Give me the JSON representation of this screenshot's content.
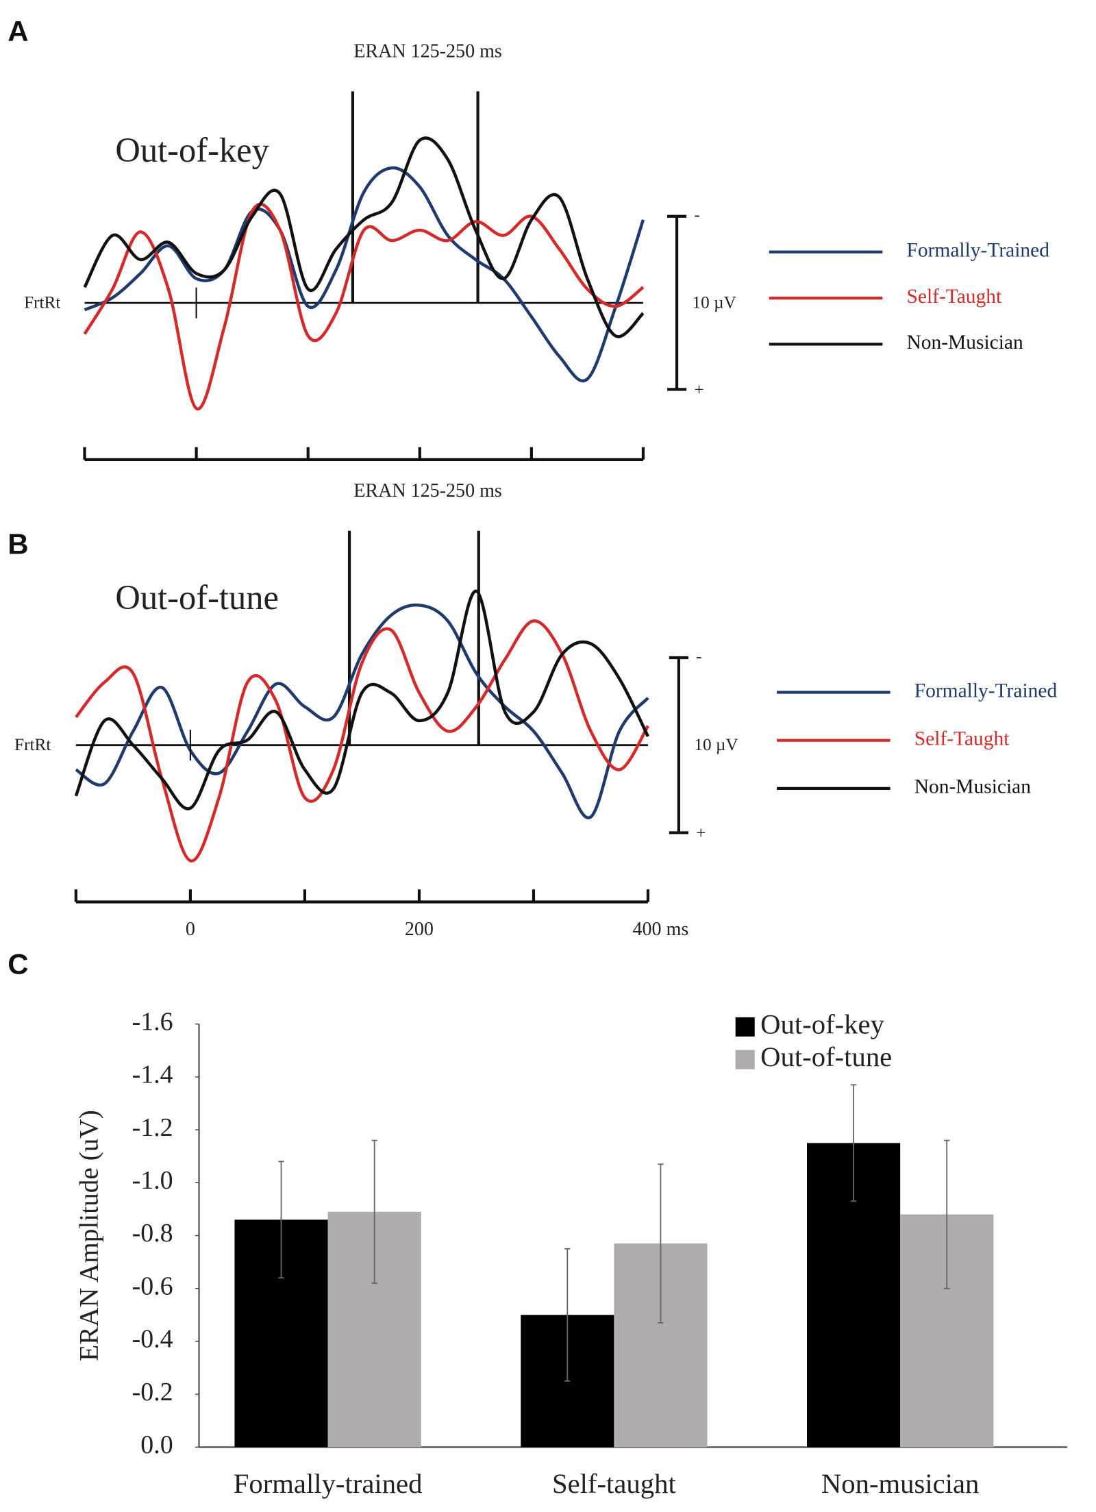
{
  "chart_data": [
    {
      "type": "line",
      "panel_label": "A",
      "title": "ERAN 125-250 ms",
      "condition": "Out-of-key",
      "channel": "FrtRt",
      "window_ms": [
        140,
        252
      ],
      "xlim": [
        -100,
        400
      ],
      "minor_xticks": [
        -100,
        0,
        100,
        200,
        300,
        400
      ],
      "scale_bar": {
        "value": 10,
        "label": "10 µV"
      },
      "scale_bar_ends": [
        "-",
        "+"
      ],
      "x": [
        -100,
        -75,
        -50,
        -25,
        0,
        25,
        50,
        75,
        100,
        125,
        150,
        175,
        200,
        225,
        250,
        275,
        300,
        325,
        350,
        375,
        400
      ],
      "series": [
        {
          "name": "Formally-Trained",
          "color": "#1f3a6e",
          "values": [
            0.4,
            -0.3,
            -1.7,
            -3.3,
            -1.4,
            -1.9,
            -5.3,
            -4.2,
            0.2,
            -1.9,
            -6.4,
            -7.8,
            -6.7,
            -3.9,
            -2.5,
            -1.4,
            0.8,
            3.1,
            4.4,
            0.3,
            -4.8
          ]
        },
        {
          "name": "Self-Taught",
          "color": "#d42a2a",
          "values": [
            1.8,
            -0.8,
            -4.1,
            -0.8,
            6.1,
            1.4,
            -5.3,
            -4.2,
            1.9,
            0.6,
            -4.2,
            -3.6,
            -4.2,
            -3.6,
            -4.7,
            -3.9,
            -5.0,
            -3.1,
            -0.8,
            0.2,
            -0.9
          ]
        },
        {
          "name": "Non-Musician",
          "color": "#111111",
          "values": [
            -0.9,
            -3.9,
            -2.5,
            -3.5,
            -1.7,
            -1.9,
            -5.0,
            -6.3,
            -0.8,
            -3.1,
            -4.8,
            -5.8,
            -9.4,
            -8.3,
            -4.2,
            -1.4,
            -4.8,
            -6.1,
            -1.4,
            1.9,
            0.6
          ]
        }
      ]
    },
    {
      "type": "line",
      "panel_label": "B",
      "title": "ERAN 125-250 ms",
      "condition": "Out-of-tune",
      "channel": "FrtRt",
      "window_ms": [
        139,
        252
      ],
      "xlim": [
        -100,
        400
      ],
      "xticks": [
        0,
        200,
        {
          "value": 400,
          "label": "400 ms"
        }
      ],
      "minor_xticks": [
        -100,
        100,
        300
      ],
      "scale_bar": {
        "value": 10,
        "label": "10 µV"
      },
      "scale_bar_ends": [
        "-",
        "+"
      ],
      "x": [
        -100,
        -75,
        -50,
        -25,
        0,
        25,
        50,
        75,
        100,
        125,
        150,
        175,
        200,
        225,
        250,
        275,
        300,
        325,
        350,
        375,
        400
      ],
      "series": [
        {
          "name": "Formally-Trained",
          "color": "#1f3a6e",
          "values": [
            1.4,
            2.2,
            -0.8,
            -3.3,
            0.3,
            1.6,
            -0.8,
            -3.5,
            -2.2,
            -1.6,
            -5.2,
            -7.4,
            -8.0,
            -7.1,
            -4.1,
            -2.2,
            -0.8,
            1.6,
            4.1,
            -0.8,
            -2.7
          ]
        },
        {
          "name": "Self-Taught",
          "color": "#d42a2a",
          "values": [
            -1.6,
            -3.6,
            -4.1,
            1.9,
            6.6,
            3.0,
            -3.6,
            -2.5,
            3.0,
            1.4,
            -4.7,
            -6.6,
            -3.0,
            -0.8,
            -2.2,
            -4.9,
            -7.1,
            -5.2,
            -0.8,
            1.4,
            -1.1
          ]
        },
        {
          "name": "Non-Musician",
          "color": "#111111",
          "values": [
            2.9,
            -1.4,
            0,
            1.9,
            3.6,
            0.3,
            -0.3,
            -1.9,
            1.4,
            2.5,
            -3.0,
            -3.0,
            -1.4,
            -3.0,
            -8.8,
            -1.9,
            -1.9,
            -5.2,
            -5.8,
            -3.8,
            -0.5
          ]
        }
      ]
    },
    {
      "type": "bar",
      "panel_label": "C",
      "ylabel": "ERAN Amplitude (uV)",
      "categories": [
        "Formally-trained",
        "Self-taught",
        "Non-musician"
      ],
      "ylim": [
        0,
        -1.6
      ],
      "yticks": [
        {
          "value": 0,
          "label": "0.0"
        },
        -0.2,
        -0.4,
        -0.6,
        -0.8,
        {
          "value": -1,
          "label": "-1.0"
        },
        -1.2,
        -1.4,
        -1.6
      ],
      "legend": "top-right",
      "series": [
        {
          "name": "Out-of-key",
          "color": "#000000",
          "values": [
            -0.86,
            -0.5,
            -1.15
          ],
          "errors": [
            0.22,
            0.25,
            0.22
          ]
        },
        {
          "name": "Out-of-tune",
          "color": "#afacab",
          "values": [
            -0.89,
            -0.77,
            -0.88
          ],
          "errors": [
            0.27,
            0.3,
            0.28
          ]
        }
      ]
    }
  ]
}
